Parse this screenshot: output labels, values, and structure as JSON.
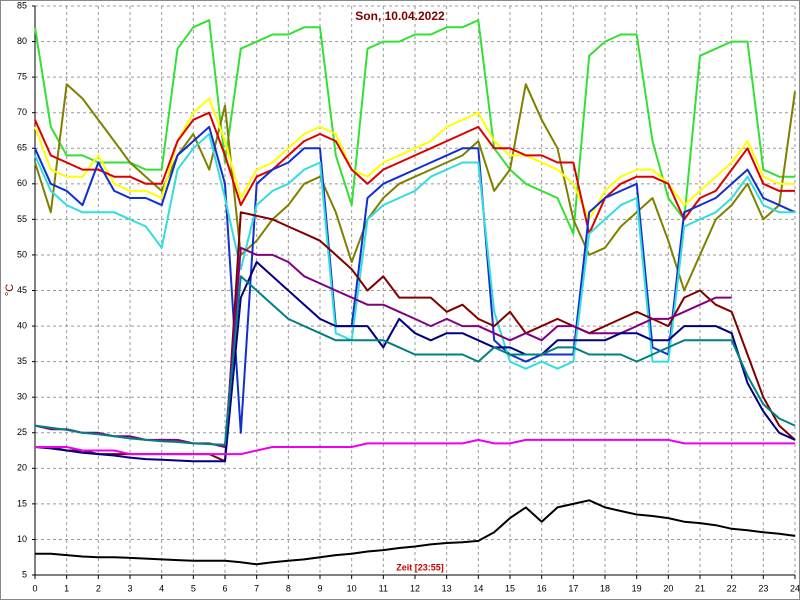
{
  "chart_data": {
    "type": "line",
    "title": "Son, 10.04.2022",
    "y_label": "°C",
    "x_label": "Zeit [23:55]",
    "xlim": [
      0,
      24
    ],
    "xticks": [
      0,
      1,
      2,
      3,
      4,
      5,
      6,
      7,
      8,
      9,
      10,
      11,
      12,
      13,
      14,
      15,
      16,
      17,
      18,
      19,
      20,
      21,
      22,
      23,
      24
    ],
    "ylim": [
      5,
      85
    ],
    "yticks": [
      5,
      10,
      15,
      20,
      25,
      30,
      35,
      40,
      45,
      50,
      55,
      60,
      65,
      70,
      75,
      80,
      85
    ],
    "grid": true,
    "x": [
      0,
      0.5,
      1,
      1.5,
      2,
      2.5,
      3,
      3.5,
      4,
      4.5,
      5,
      5.5,
      6,
      6.5,
      7,
      7.5,
      8,
      8.5,
      9,
      9.5,
      10,
      10.5,
      11,
      11.5,
      12,
      12.5,
      13,
      13.5,
      14,
      14.5,
      15,
      15.5,
      16,
      16.5,
      17,
      17.5,
      18,
      18.5,
      19,
      19.5,
      20,
      20.5,
      21,
      21.5,
      22,
      22.5,
      23,
      23.5,
      24
    ],
    "series": [
      {
        "color": "#33e033",
        "values": [
          82,
          68,
          64,
          64,
          63,
          63,
          63,
          62,
          62,
          79,
          82,
          83,
          63,
          79,
          80,
          81,
          81,
          82,
          82,
          64,
          57,
          79,
          80,
          80,
          81,
          81,
          82,
          82,
          83,
          65,
          62,
          60,
          59,
          58,
          53,
          78,
          80,
          81,
          81,
          66,
          58,
          55,
          78,
          79,
          80,
          80,
          62,
          61,
          61
        ]
      },
      {
        "color": "#808000",
        "values": [
          63,
          56,
          74,
          72,
          69,
          66,
          63,
          61,
          59,
          64,
          67,
          62,
          71,
          50,
          52,
          55,
          57,
          60,
          61,
          56,
          49,
          55,
          58,
          60,
          61,
          62,
          63,
          64,
          66,
          59,
          62,
          74,
          69,
          65,
          55,
          50,
          51,
          54,
          56,
          58,
          52,
          45,
          50,
          55,
          57,
          60,
          55,
          57,
          73
        ]
      },
      {
        "color": "#ffff00",
        "values": [
          68,
          62,
          61,
          61,
          64,
          60,
          59,
          59,
          58,
          66,
          70,
          72,
          66,
          58,
          62,
          63,
          65,
          67,
          68,
          67,
          62,
          61,
          63,
          64,
          65,
          66,
          68,
          69,
          70,
          66,
          64,
          64,
          63,
          62,
          60,
          55,
          59,
          61,
          62,
          62,
          60,
          57,
          59,
          61,
          63,
          66,
          61,
          60,
          60
        ]
      },
      {
        "color": "#dd0000",
        "values": [
          69,
          64,
          63,
          62,
          62,
          61,
          61,
          60,
          60,
          66,
          69,
          70,
          64,
          57,
          61,
          62,
          64,
          66,
          67,
          66,
          62,
          60,
          62,
          63,
          64,
          65,
          66,
          67,
          68,
          65,
          65,
          64,
          64,
          63,
          63,
          53,
          58,
          60,
          61,
          61,
          60,
          55,
          58,
          59,
          62,
          65,
          60,
          59,
          59
        ]
      },
      {
        "color": "#1030d0",
        "values": [
          65,
          60,
          59,
          57,
          63,
          59,
          58,
          58,
          57,
          64,
          66,
          68,
          60,
          25,
          60,
          62,
          63,
          65,
          65,
          40,
          40,
          58,
          60,
          61,
          62,
          63,
          64,
          65,
          65,
          38,
          36,
          35,
          36,
          36,
          36,
          56,
          58,
          59,
          60,
          37,
          36,
          56,
          57,
          58,
          60,
          62,
          58,
          57,
          56
        ]
      },
      {
        "color": "#33dddd",
        "values": [
          64,
          59,
          57,
          56,
          56,
          56,
          55,
          54,
          51,
          62,
          65,
          67,
          58,
          48,
          57,
          59,
          60,
          62,
          63,
          39,
          38,
          55,
          57,
          58,
          59,
          61,
          62,
          63,
          63,
          42,
          35,
          34,
          35,
          34,
          35,
          53,
          55,
          57,
          58,
          35,
          35,
          54,
          55,
          56,
          58,
          61,
          57,
          56,
          56
        ]
      },
      {
        "color": "#800000",
        "values": [
          23,
          23,
          22.5,
          22.5,
          22,
          22,
          22,
          22,
          22,
          22,
          22,
          22,
          21,
          56,
          55.5,
          55,
          54,
          53,
          52,
          50,
          48,
          45,
          47,
          44,
          44,
          44,
          42,
          43,
          41,
          40,
          42,
          39,
          40,
          41,
          40,
          39,
          40,
          41,
          42,
          41,
          40,
          44,
          45,
          43,
          42,
          36,
          30,
          26,
          24
        ]
      },
      {
        "color": "#800080",
        "values": [
          26,
          25.5,
          25.5,
          25,
          25,
          24.5,
          24.5,
          24,
          24,
          24,
          23.5,
          23.5,
          23,
          51,
          50,
          50,
          49,
          47,
          46,
          45,
          44,
          43,
          43,
          42,
          41,
          40,
          41,
          40,
          40,
          39,
          38,
          39,
          38,
          40,
          40,
          39,
          39,
          39,
          40,
          41,
          41,
          42,
          43,
          44,
          44,
          null,
          null,
          null,
          null
        ]
      },
      {
        "color": "#000080",
        "values": [
          23,
          22.8,
          22.5,
          22.2,
          22,
          21.8,
          21.5,
          21.3,
          21.2,
          21.1,
          21,
          21,
          21,
          44,
          49,
          47,
          45,
          43,
          41,
          40,
          40,
          40,
          37,
          41,
          39,
          38,
          39,
          39,
          38,
          37,
          37,
          36,
          36,
          38,
          38,
          38,
          38,
          39,
          39,
          38,
          38,
          40,
          40,
          40,
          39,
          32,
          28,
          25,
          24
        ]
      },
      {
        "color": "#008080",
        "values": [
          26,
          25.7,
          25.4,
          25,
          24.8,
          24.5,
          24.2,
          24,
          23.8,
          23.7,
          23.5,
          23.4,
          23.3,
          47,
          45,
          43,
          41,
          40,
          39,
          38,
          38,
          38,
          38,
          37,
          36,
          36,
          36,
          36,
          35,
          37,
          36,
          36,
          36,
          37,
          37,
          36,
          36,
          36,
          35,
          36,
          37,
          38,
          38,
          38,
          38,
          33,
          29,
          27,
          26
        ]
      },
      {
        "color": "#ee00ee",
        "values": [
          23,
          23,
          23,
          22.5,
          22.5,
          22.5,
          22,
          22,
          22,
          22,
          22,
          22,
          22,
          22,
          22.5,
          23,
          23,
          23,
          23,
          23,
          23,
          23.5,
          23.5,
          23.5,
          23.5,
          23.5,
          23.5,
          23.5,
          24,
          23.5,
          23.5,
          24,
          24,
          24,
          24,
          24,
          24,
          24,
          24,
          24,
          24,
          23.5,
          23.5,
          23.5,
          23.5,
          23.5,
          23.5,
          23.5,
          23.5
        ]
      },
      {
        "color": "#000000",
        "values": [
          8,
          8,
          7.8,
          7.6,
          7.5,
          7.5,
          7.4,
          7.3,
          7.2,
          7.1,
          7,
          7,
          7,
          6.8,
          6.5,
          6.8,
          7,
          7.2,
          7.5,
          7.8,
          8,
          8.3,
          8.5,
          8.8,
          9,
          9.3,
          9.5,
          9.6,
          9.8,
          11,
          13,
          14.5,
          12.5,
          14.5,
          15,
          15.5,
          14.5,
          14,
          13.5,
          13.3,
          13,
          12.5,
          12.3,
          12,
          11.5,
          11.3,
          11,
          10.8,
          10.5
        ]
      }
    ]
  }
}
